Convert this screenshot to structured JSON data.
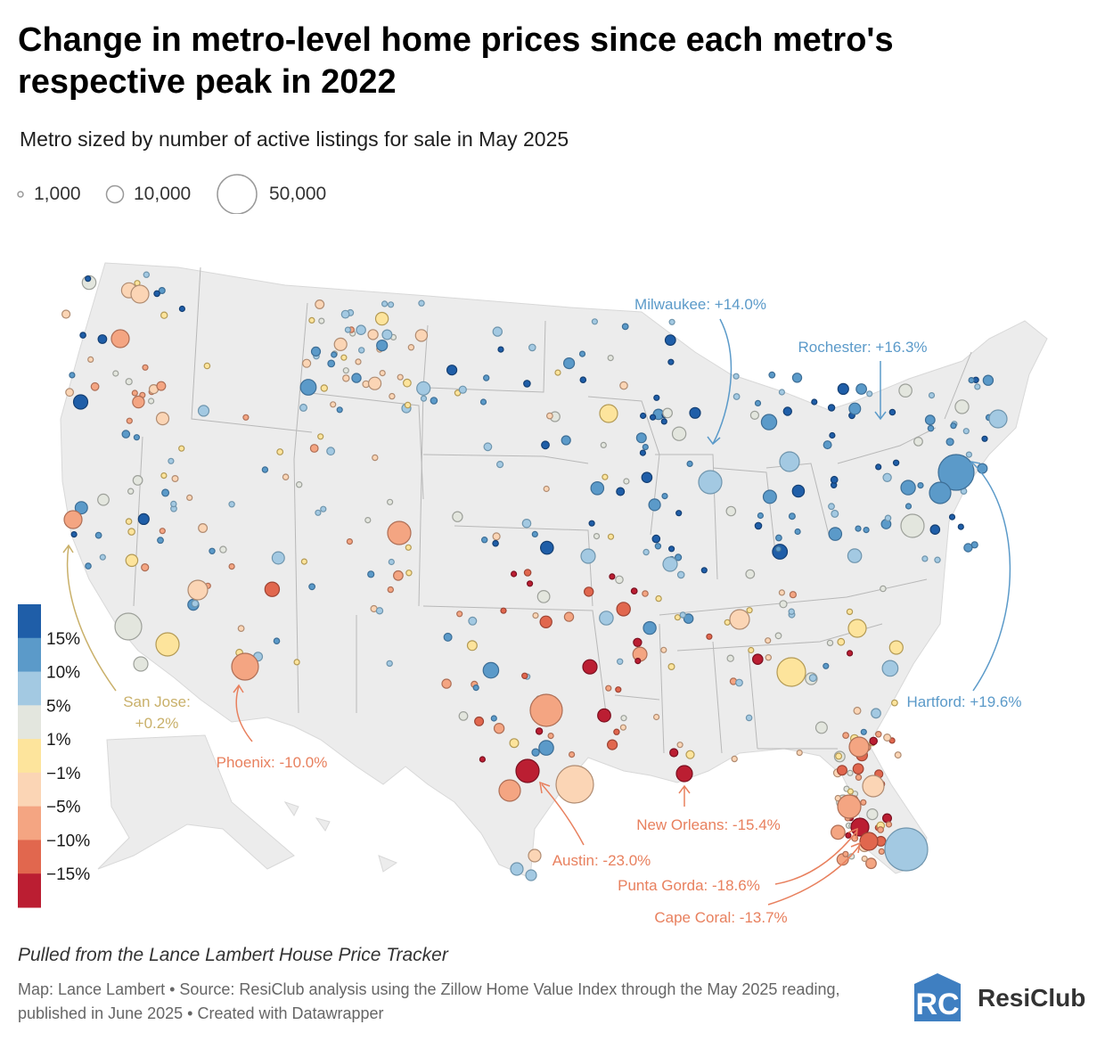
{
  "title": "Change in metro-level home prices since each metro's respective peak in 2022",
  "subtitle": "Metro sized by number of active listings for sale in May 2025",
  "size_legend": [
    "1,000",
    "10,000",
    "50,000"
  ],
  "color_scale": {
    "labels": [
      "15%",
      "10%",
      "5%",
      "1%",
      "−1%",
      "−5%",
      "−10%",
      "−15%"
    ],
    "colors": [
      "#1f5ea8",
      "#5b9ac9",
      "#a3c9e2",
      "#e3e6de",
      "#fde49c",
      "#fbd5b5",
      "#f4a582",
      "#e1674e",
      "#bb1e32"
    ]
  },
  "annotations": [
    {
      "label": "Milwaukee: +14.0%",
      "color": "#5b9ac9"
    },
    {
      "label": "Rochester: +16.3%",
      "color": "#5b9ac9"
    },
    {
      "label": "Hartford: +19.6%",
      "color": "#5b9ac9"
    },
    {
      "label": "San Jose:",
      "color": "#c9b06a"
    },
    {
      "label": "+0.2%",
      "color": "#c9b06a"
    },
    {
      "label": "Phoenix: -10.0%",
      "color": "#e8805e"
    },
    {
      "label": "New Orleans: -15.4%",
      "color": "#e8805e"
    },
    {
      "label": "Austin: -23.0%",
      "color": "#e8805e"
    },
    {
      "label": "Punta Gorda: -18.6%",
      "color": "#e8805e"
    },
    {
      "label": "Cape Coral: -13.7%",
      "color": "#e8805e"
    }
  ],
  "footnote": "Pulled from the Lance Lambert House Price Tracker",
  "credits": "Map: Lance Lambert • Source: ResiClub analysis using the Zillow Home Value Index through the May 2025 reading, published in June 2025 • Created with Datawrapper",
  "logo_text": "ResiClub",
  "logo_mark": "RC",
  "colors": {
    "land": "#ececec",
    "border": "#b8b8b8",
    "background": "#ffffff"
  }
}
